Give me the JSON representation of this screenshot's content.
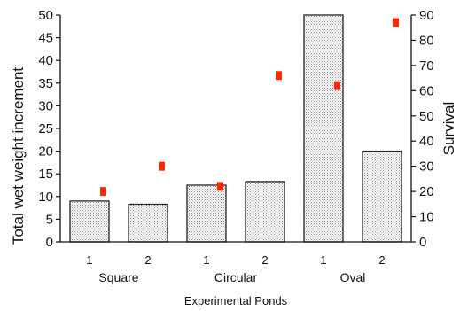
{
  "chart_data": {
    "type": "bar",
    "title": "",
    "xlabel": "Experimental Ponds",
    "ylabel": "Total wet weight increment",
    "y2label": "Survival",
    "categories": [
      "1",
      "2",
      "1",
      "2",
      "1",
      "2"
    ],
    "groups": [
      {
        "name": "Square",
        "span": [
          0,
          1
        ]
      },
      {
        "name": "Circular",
        "span": [
          2,
          3
        ]
      },
      {
        "name": "Oval",
        "span": [
          4,
          5
        ]
      }
    ],
    "series": [
      {
        "values": [
          9,
          8.3,
          12.5,
          13.3,
          50,
          20
        ],
        "style": "bar",
        "axis": "left",
        "fill": "#d9d9d9"
      },
      {
        "values": [
          20,
          30,
          22,
          66,
          62,
          87
        ],
        "style": "point",
        "axis": "right",
        "color": "#ff2600"
      }
    ],
    "ylim": [
      0,
      50
    ],
    "y_ticks": [
      0,
      5,
      10,
      15,
      20,
      25,
      30,
      35,
      40,
      45,
      50
    ],
    "y2lim": [
      0,
      90
    ],
    "y2_ticks": [
      0,
      10,
      20,
      30,
      40,
      50,
      60,
      70,
      80,
      90
    ],
    "grid": false,
    "legend": "none"
  }
}
